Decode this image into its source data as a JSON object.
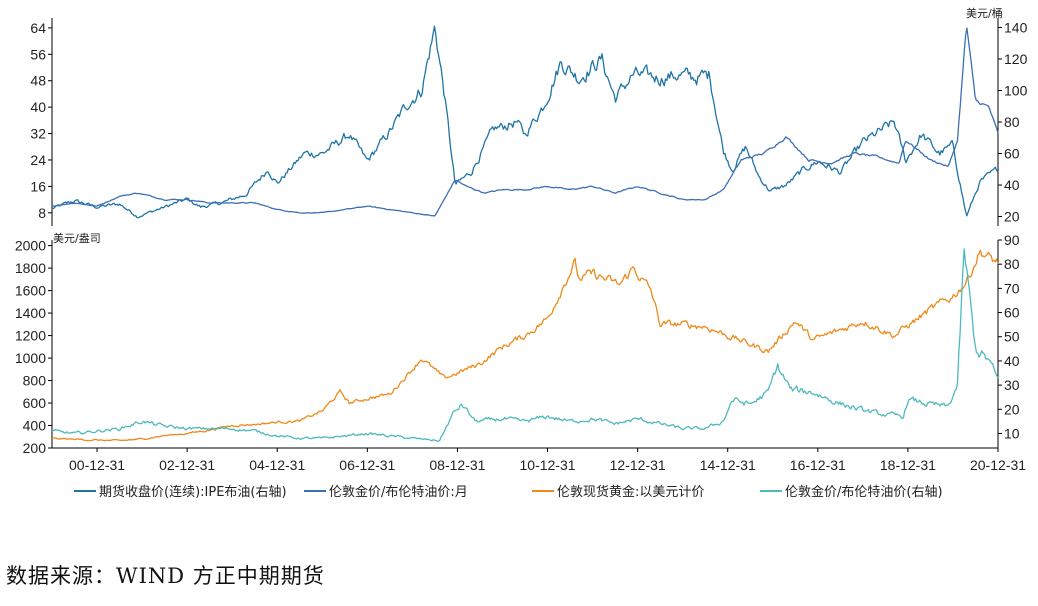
{
  "source_text": "数据来源：WIND 方正中期期货",
  "colors": {
    "brent": "#1f74a6",
    "gold_oil_ratio_monthly": "#3d6fb5",
    "gold": "#ef8a1a",
    "gold_oil_ratio_daily": "#4fb9bd",
    "axis": "#000000"
  },
  "chart_data": [
    {
      "type": "line",
      "panel": "top",
      "x_ticks": [
        "00-12-31",
        "02-12-31",
        "04-12-31",
        "06-12-31",
        "08-12-31",
        "10-12-31",
        "12-12-31",
        "14-12-31",
        "16-12-31",
        "18-12-31",
        "20-12-31"
      ],
      "x_range": [
        2000.0,
        2021.0
      ],
      "y_left": {
        "range": [
          4,
          67
        ],
        "ticks": [
          "8",
          "16",
          "24",
          "32",
          "40",
          "48",
          "56",
          "64"
        ],
        "unit": ""
      },
      "y_right": {
        "range": [
          14,
          146
        ],
        "ticks": [
          "20",
          "40",
          "60",
          "80",
          "100",
          "120",
          "140"
        ],
        "unit": "美元/桶"
      },
      "series": [
        {
          "name": "期货收盘价(连续):IPE布油(右轴)",
          "axis": "right",
          "x": [
            2000.0,
            2000.5,
            2001.0,
            2001.5,
            2001.9,
            2002.5,
            2003.0,
            2003.3,
            2003.8,
            2004.3,
            2004.8,
            2005.0,
            2005.6,
            2006.0,
            2006.6,
            2007.0,
            2007.5,
            2007.9,
            2008.2,
            2008.5,
            2008.7,
            2008.95,
            2009.3,
            2009.8,
            2010.3,
            2010.5,
            2010.9,
            2011.3,
            2011.7,
            2012.2,
            2012.5,
            2012.9,
            2013.5,
            2013.9,
            2014.3,
            2014.6,
            2014.9,
            2015.1,
            2015.4,
            2015.7,
            2015.95,
            2016.3,
            2016.7,
            2017.0,
            2017.5,
            2018.0,
            2018.7,
            2018.95,
            2019.3,
            2019.7,
            2020.0,
            2020.3,
            2020.6,
            2020.9,
            2021.0
          ],
          "y": [
            25,
            30,
            26,
            28,
            20,
            26,
            31,
            26,
            29,
            34,
            50,
            41,
            60,
            60,
            72,
            55,
            74,
            92,
            100,
            140,
            100,
            40,
            48,
            75,
            80,
            72,
            90,
            118,
            108,
            120,
            95,
            110,
            108,
            110,
            108,
            110,
            62,
            50,
            64,
            45,
            36,
            40,
            50,
            55,
            48,
            67,
            80,
            55,
            72,
            60,
            65,
            20,
            42,
            48,
            50
          ]
        },
        {
          "name": "伦敦金价/布伦特油价:月",
          "axis": "left",
          "x": [
            2000.0,
            2000.5,
            2001.0,
            2001.5,
            2001.9,
            2002.5,
            2003.0,
            2003.5,
            2004.0,
            2004.5,
            2005.0,
            2005.5,
            2006.0,
            2006.5,
            2007.0,
            2007.5,
            2008.0,
            2008.5,
            2008.95,
            2009.2,
            2009.6,
            2010.0,
            2010.5,
            2011.0,
            2011.5,
            2012.0,
            2012.5,
            2013.0,
            2013.5,
            2014.0,
            2014.5,
            2014.9,
            2015.3,
            2015.8,
            2016.0,
            2016.3,
            2016.8,
            2017.3,
            2017.8,
            2018.3,
            2018.8,
            2018.95,
            2019.5,
            2019.9,
            2020.1,
            2020.3,
            2020.5,
            2020.8,
            2021.0
          ],
          "y": [
            10,
            11,
            10,
            13,
            14,
            12,
            12,
            11,
            11,
            11,
            9,
            8,
            8,
            9,
            10,
            9,
            8,
            7,
            18,
            16,
            14,
            15,
            15,
            16,
            15,
            16,
            14,
            16,
            14,
            12,
            12,
            15,
            24,
            26,
            28,
            31,
            24,
            23,
            26,
            25,
            23,
            30,
            24,
            22,
            30,
            65,
            42,
            40,
            32
          ]
        }
      ]
    },
    {
      "type": "line",
      "panel": "bottom",
      "x_ticks": [
        "00-12-31",
        "02-12-31",
        "04-12-31",
        "06-12-31",
        "08-12-31",
        "10-12-31",
        "12-12-31",
        "14-12-31",
        "16-12-31",
        "18-12-31",
        "20-12-31"
      ],
      "x_range": [
        2000.0,
        2021.0
      ],
      "y_left": {
        "range": [
          200,
          2050
        ],
        "ticks": [
          "200",
          "400",
          "600",
          "800",
          "1000",
          "1200",
          "1400",
          "1600",
          "1800",
          "2000"
        ],
        "unit": "美元/盎司"
      },
      "y_right": {
        "range": [
          4,
          90
        ],
        "ticks": [
          "10",
          "20",
          "30",
          "40",
          "50",
          "60",
          "70",
          "80",
          "90"
        ],
        "unit": ""
      },
      "series": [
        {
          "name": "伦敦现货黄金:以美元计价",
          "axis": "left",
          "x": [
            2000.0,
            2001.0,
            2001.5,
            2002.0,
            2002.5,
            2003.0,
            2003.5,
            2004.0,
            2004.5,
            2005.0,
            2005.5,
            2006.0,
            2006.4,
            2006.6,
            2007.0,
            2007.5,
            2008.0,
            2008.2,
            2008.7,
            2008.9,
            2009.5,
            2010.0,
            2010.5,
            2011.0,
            2011.6,
            2011.7,
            2012.0,
            2012.6,
            2012.9,
            2013.3,
            2013.5,
            2014.0,
            2014.5,
            2015.0,
            2015.9,
            2016.5,
            2016.9,
            2017.5,
            2018.0,
            2018.7,
            2019.0,
            2019.5,
            2020.0,
            2020.3,
            2020.6,
            2020.8,
            2021.0
          ],
          "y": [
            285,
            270,
            265,
            280,
            310,
            330,
            360,
            400,
            410,
            430,
            440,
            530,
            700,
            600,
            640,
            680,
            900,
            1000,
            820,
            850,
            950,
            1100,
            1200,
            1350,
            1850,
            1700,
            1750,
            1650,
            1800,
            1600,
            1300,
            1300,
            1280,
            1200,
            1060,
            1330,
            1160,
            1250,
            1330,
            1200,
            1290,
            1430,
            1550,
            1680,
            1950,
            1890,
            1850
          ]
        },
        {
          "name": "伦敦金价/布伦特油价(右轴)",
          "axis": "right",
          "x": [
            2000.0,
            2000.5,
            2001.0,
            2001.5,
            2002.0,
            2002.5,
            2003.0,
            2003.5,
            2004.0,
            2004.5,
            2005.0,
            2005.5,
            2006.0,
            2006.5,
            2007.0,
            2007.5,
            2008.0,
            2008.6,
            2008.9,
            2009.1,
            2009.4,
            2010.0,
            2010.5,
            2011.0,
            2011.5,
            2012.0,
            2012.5,
            2013.0,
            2013.5,
            2014.0,
            2014.5,
            2014.9,
            2015.1,
            2015.5,
            2015.9,
            2016.1,
            2016.4,
            2016.9,
            2017.4,
            2017.9,
            2018.4,
            2018.9,
            2019.0,
            2019.5,
            2019.9,
            2020.1,
            2020.25,
            2020.5,
            2020.8,
            2021.0
          ],
          "y": [
            11,
            10,
            11,
            12,
            15,
            13,
            12,
            12,
            12,
            11,
            9,
            8,
            8,
            9,
            10,
            9,
            8,
            7,
            18,
            22,
            15,
            16,
            15,
            17,
            15,
            16,
            14,
            16,
            14,
            12,
            12,
            15,
            24,
            22,
            27,
            38,
            28,
            27,
            23,
            20,
            18,
            17,
            24,
            22,
            21,
            30,
            85,
            45,
            40,
            32
          ]
        }
      ]
    }
  ]
}
